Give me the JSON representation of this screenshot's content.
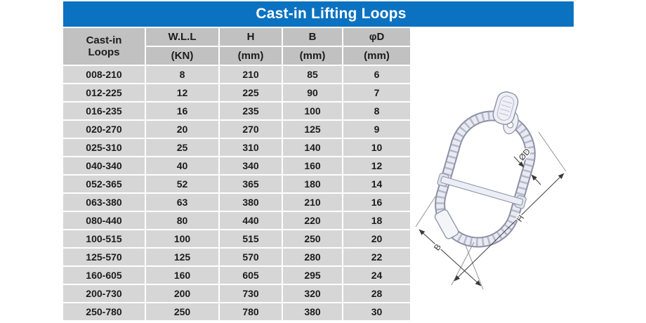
{
  "title": "Cast-in Lifting Loops",
  "colors": {
    "title_bar": "#0b72c1",
    "header_cell": "#c1c1c1",
    "data_cell": "#d6d6d6",
    "title_text": "#ffffff",
    "cell_text": "#1c1c1c"
  },
  "table": {
    "corner_header": {
      "line1": "Cast-in",
      "line2": "Loops"
    },
    "columns": [
      {
        "label": "W.L.L",
        "unit": "(KN)"
      },
      {
        "label": "H",
        "unit": "(mm)"
      },
      {
        "label": "B",
        "unit": "(mm)"
      },
      {
        "label": "φD",
        "unit": "(mm)"
      }
    ],
    "rows": [
      [
        "008-210",
        "8",
        "210",
        "85",
        "6"
      ],
      [
        "012-225",
        "12",
        "225",
        "90",
        "7"
      ],
      [
        "016-235",
        "16",
        "235",
        "100",
        "8"
      ],
      [
        "020-270",
        "20",
        "270",
        "125",
        "9"
      ],
      [
        "025-310",
        "25",
        "310",
        "140",
        "10"
      ],
      [
        "040-340",
        "40",
        "340",
        "160",
        "12"
      ],
      [
        "052-365",
        "52",
        "365",
        "180",
        "14"
      ],
      [
        "063-380",
        "63",
        "380",
        "210",
        "16"
      ],
      [
        "080-440",
        "80",
        "440",
        "220",
        "18"
      ],
      [
        "100-515",
        "100",
        "515",
        "250",
        "20"
      ],
      [
        "125-570",
        "125",
        "570",
        "280",
        "22"
      ],
      [
        "160-605",
        "160",
        "605",
        "295",
        "24"
      ],
      [
        "200-730",
        "200",
        "730",
        "320",
        "28"
      ],
      [
        "250-780",
        "250",
        "780",
        "380",
        "30"
      ]
    ]
  },
  "diagram": {
    "labels": {
      "diameter": "ØD",
      "height": "H",
      "width": "B"
    }
  }
}
